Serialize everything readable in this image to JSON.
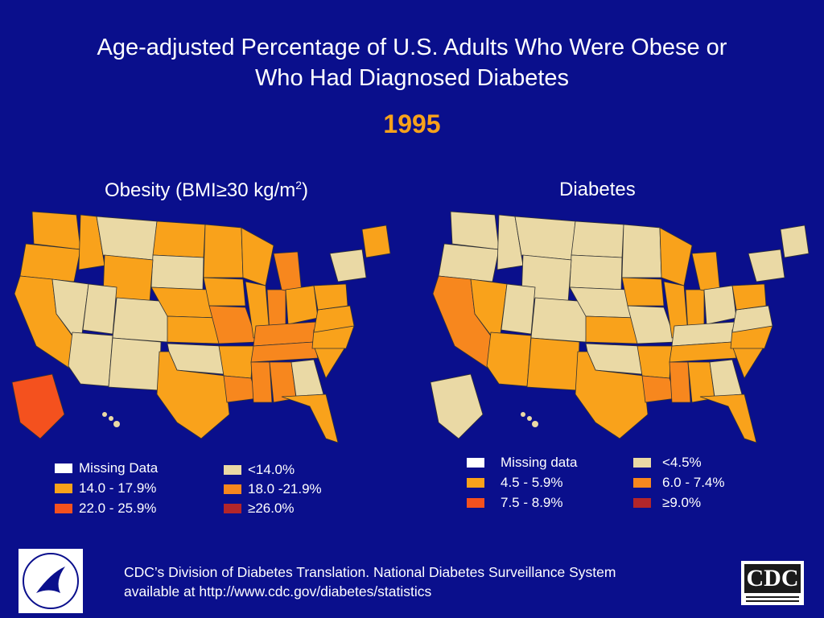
{
  "slide": {
    "title_line1": "Age-adjusted Percentage of U.S. Adults Who Were Obese or",
    "title_line2": "Who Had Diagnosed Diabetes",
    "year": "1995"
  },
  "obesity_map": {
    "title_prefix": "Obesity (BMI≥30 kg/m",
    "title_sup": "2",
    "title_suffix": ")",
    "legend": [
      {
        "label": "Missing Data",
        "color": "#ffffff"
      },
      {
        "label": "14.0 - 17.9%",
        "color": "#f9a21b"
      },
      {
        "label": "22.0 - 25.9%",
        "color": "#f4511e"
      },
      {
        "label": "<14.0%",
        "color": "#ead9a5"
      },
      {
        "label": "18.0 -21.9%",
        "color": "#f7871e"
      },
      {
        "label": "≥26.0%",
        "color": "#b3262a"
      }
    ]
  },
  "diabetes_map": {
    "title": "Diabetes",
    "legend": [
      {
        "label": "Missing data",
        "color": "#ffffff"
      },
      {
        "label": "4.5 - 5.9%",
        "color": "#f9a21b"
      },
      {
        "label": "7.5 - 8.9%",
        "color": "#f4511e"
      },
      {
        "label": "<4.5%",
        "color": "#ead9a5"
      },
      {
        "label": "6.0 - 7.4%",
        "color": "#f7871e"
      },
      {
        "label": "≥9.0%",
        "color": "#b3262a"
      }
    ]
  },
  "footer": {
    "line1": "CDC’s Division of Diabetes Translation.  National Diabetes Surveillance System",
    "line2": "available at http://www.cdc.gov/diabetes/statistics"
  },
  "logos": {
    "hhs": "hhs-seal",
    "cdc_text": "CDC"
  }
}
